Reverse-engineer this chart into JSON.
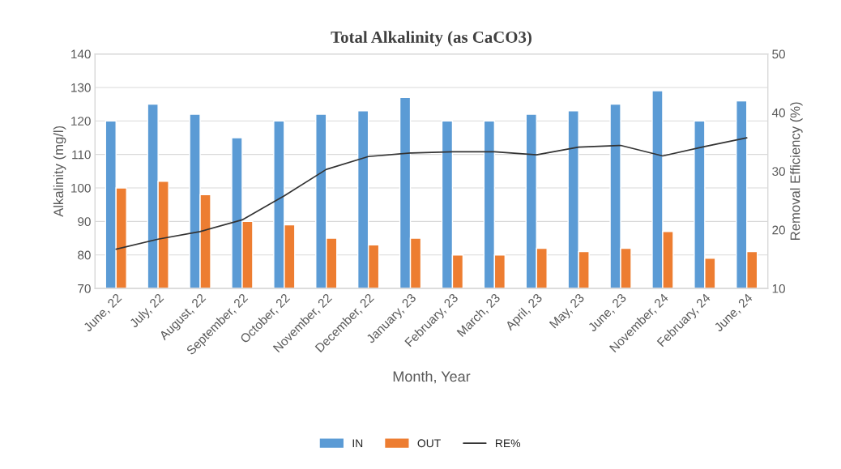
{
  "chart_data": {
    "type": "bar",
    "title": "Total Alkalinity (as CaCO3)",
    "xlabel": "Month, Year",
    "ylabel": "Alkalinity (mg/l)",
    "y2label": "Removal Efficiency (%)",
    "categories": [
      "June, 22",
      "July, 22",
      "August, 22",
      "September, 22",
      "October, 22",
      "November, 22",
      "December, 22",
      "January, 23",
      "February, 23",
      "March, 23",
      "April, 23",
      "May, 23",
      "June, 23",
      "November, 24",
      "February, 24",
      "June, 24"
    ],
    "series": [
      {
        "name": "IN",
        "color": "#5b9bd5",
        "values": [
          120,
          125,
          122,
          115,
          120,
          122,
          123,
          127,
          120,
          120,
          122,
          123,
          125,
          129,
          120,
          126
        ]
      },
      {
        "name": "OUT",
        "color": "#ed7d31",
        "values": [
          100,
          102,
          98,
          90,
          89,
          85,
          83,
          85,
          80,
          80,
          82,
          81,
          82,
          87,
          79,
          81
        ]
      },
      {
        "name": "RE%",
        "type": "line",
        "axis": "y2",
        "color": "#333333",
        "values": [
          16.7,
          18.4,
          19.7,
          21.7,
          25.8,
          30.3,
          32.5,
          33.1,
          33.3,
          33.3,
          32.8,
          34.1,
          34.4,
          32.6,
          34.2,
          35.7
        ]
      }
    ],
    "ylim": [
      70,
      140
    ],
    "yticks": [
      70,
      80,
      90,
      100,
      110,
      120,
      130,
      140
    ],
    "y2lim": [
      10,
      50
    ],
    "y2ticks": [
      10,
      20,
      30,
      40,
      50
    ],
    "grid": "y",
    "legend": "bottom"
  }
}
